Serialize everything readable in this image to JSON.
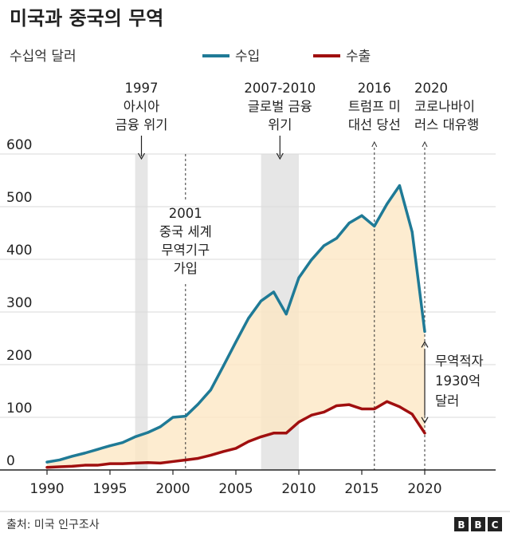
{
  "title": "미국과 중국의 무역",
  "source": "출처: 미국 인구조사",
  "logo": "BBC",
  "chart_data": {
    "type": "line",
    "ylabel": "수십억 달러",
    "xlim": [
      1990,
      2020
    ],
    "ylim": [
      0,
      600
    ],
    "x_ticks": [
      1990,
      1995,
      2000,
      2005,
      2010,
      2015,
      2020
    ],
    "y_ticks": [
      0,
      100,
      200,
      300,
      400,
      500,
      600
    ],
    "grid": "horizontal",
    "legend_position": "top",
    "shaded_area": "between-series",
    "x": [
      1990,
      1991,
      1992,
      1993,
      1994,
      1995,
      1996,
      1997,
      1998,
      1999,
      2000,
      2001,
      2002,
      2003,
      2004,
      2005,
      2006,
      2007,
      2008,
      2009,
      2010,
      2011,
      2012,
      2013,
      2014,
      2015,
      2016,
      2017,
      2018,
      2019,
      2020
    ],
    "series": [
      {
        "name": "수입",
        "color": "#1f7a96",
        "values": [
          15,
          19,
          26,
          32,
          39,
          46,
          52,
          63,
          71,
          82,
          100,
          102,
          125,
          152,
          197,
          243,
          288,
          321,
          338,
          296,
          365,
          399,
          426,
          440,
          469,
          483,
          463,
          505,
          540,
          452,
          263
        ]
      },
      {
        "name": "수출",
        "color": "#a00f0f",
        "values": [
          5,
          6,
          7,
          9,
          9,
          12,
          12,
          13,
          14,
          13,
          16,
          19,
          22,
          28,
          35,
          41,
          54,
          63,
          70,
          70,
          91,
          104,
          110,
          122,
          124,
          116,
          116,
          130,
          120,
          106,
          70
        ]
      }
    ],
    "periods": [
      {
        "start": 1997,
        "end": 1998,
        "label": [
          "1997",
          "아시아",
          "금융 위기"
        ]
      },
      {
        "start": 2007,
        "end": 2010,
        "label": [
          "2007-2010",
          "글로벌 금융",
          "위기"
        ]
      }
    ],
    "events": [
      {
        "x": 2001,
        "label": [
          "2001",
          "중국 세계",
          "무역기구",
          "가입"
        ]
      },
      {
        "x": 2016,
        "label": [
          "2016",
          "트럼프 미",
          "대선 당선"
        ]
      },
      {
        "x": 2020,
        "label": [
          "2020",
          "코로나바이",
          "러스 대유행"
        ]
      }
    ],
    "deficit_annotation": {
      "x": 2020,
      "label": [
        "무역적자",
        "1930억",
        "달러"
      ]
    },
    "colors": {
      "area_fill": "#fde7c4",
      "period_shade": "#e6e6e6",
      "grid": "#d9d9d9",
      "axis": "#222222"
    }
  }
}
